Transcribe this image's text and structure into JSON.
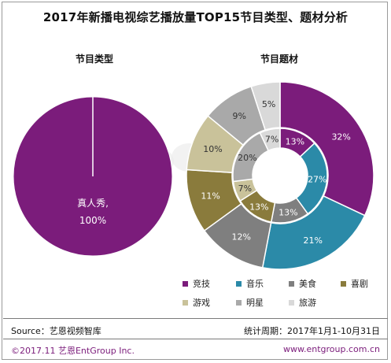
{
  "title": "2017年新播电视综艺播放量TOP15节目类型、题材分析",
  "chart_data": [
    {
      "type": "pie",
      "title": "节目类型",
      "slices": [
        {
          "name": "真人秀",
          "label": "真人秀,",
          "pct_label": "100%",
          "value": 100,
          "color": "#7b1c7b"
        }
      ]
    },
    {
      "type": "pie",
      "subtype": "nested-donut",
      "title": "节目题材",
      "outer": [
        {
          "name": "竞技",
          "value": 32,
          "label": "32%",
          "color": "#7b1c7b"
        },
        {
          "name": "音乐",
          "value": 21,
          "label": "21%",
          "color": "#2b8aa8"
        },
        {
          "name": "美食",
          "value": 12,
          "label": "12%",
          "color": "#7f7f7f"
        },
        {
          "name": "喜剧",
          "value": 11,
          "label": "11%",
          "color": "#8a7b3c"
        },
        {
          "name": "游戏",
          "value": 10,
          "label": "10%",
          "color": "#c9c29a"
        },
        {
          "name": "明星",
          "value": 9,
          "label": "9%",
          "color": "#a9a9a9"
        },
        {
          "name": "旅游",
          "value": 5,
          "label": "5%",
          "color": "#d9d9d9"
        }
      ],
      "inner": [
        {
          "name": "竞技",
          "value": 13,
          "label": "13%",
          "color": "#7b1c7b"
        },
        {
          "name": "音乐",
          "value": 27,
          "label": "27%",
          "color": "#2b8aa8"
        },
        {
          "name": "美食",
          "value": 13,
          "label": "13%",
          "color": "#7f7f7f"
        },
        {
          "name": "喜剧",
          "value": 13,
          "label": "13%",
          "color": "#8a7b3c"
        },
        {
          "name": "游戏",
          "value": 7,
          "label": "7%",
          "color": "#c9c29a"
        },
        {
          "name": "明星",
          "value": 20,
          "label": "20%",
          "color": "#a9a9a9"
        },
        {
          "name": "旅游",
          "value": 7,
          "label": "7%",
          "color": "#d9d9d9"
        }
      ],
      "legend": [
        "竞技",
        "音乐",
        "美食",
        "喜剧",
        "游戏",
        "明星",
        "旅游"
      ]
    }
  ],
  "footer": {
    "source": "Source：艺恩视频智库",
    "period": "统计周期：2017年1月1-10月31日",
    "copyright": "©2017.11  艺恩EntGroup Inc.",
    "website": "www.entgroup.com.cn"
  }
}
